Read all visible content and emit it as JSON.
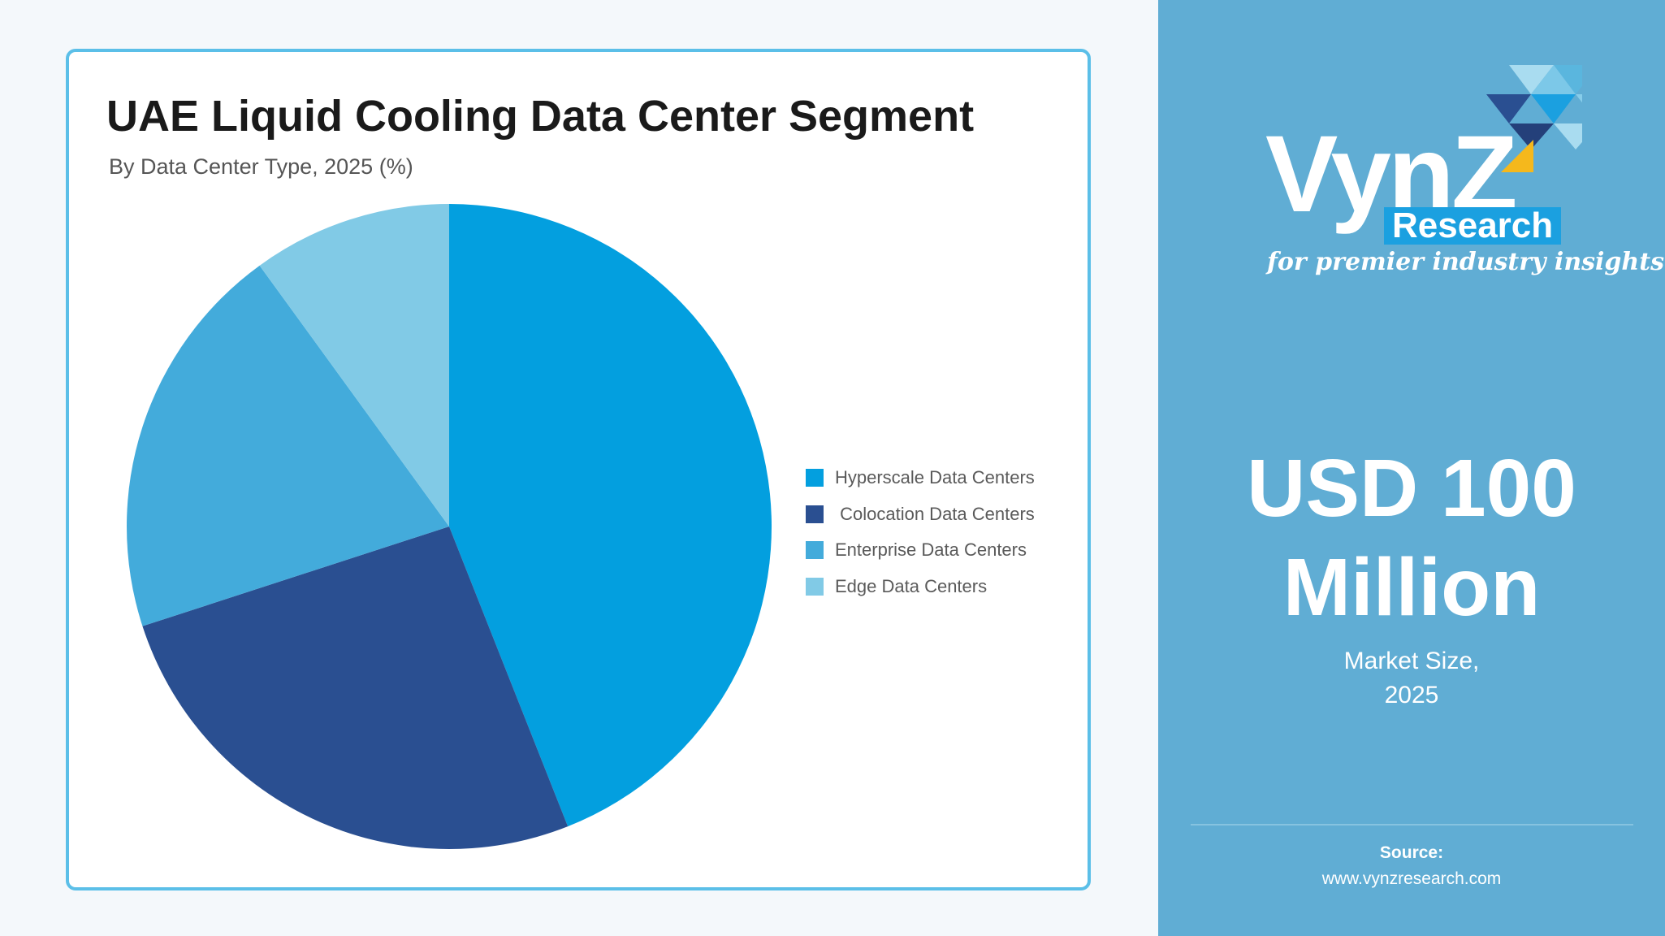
{
  "chart_data": {
    "type": "pie",
    "title": "UAE Liquid Cooling Data Center Segment",
    "subtitle": "By Data Center Type, 2025 (%)",
    "categories": [
      "Hyperscale Data Centers",
      " Colocation Data Centers",
      "Enterprise Data Centers",
      "Edge Data Centers"
    ],
    "values": [
      44,
      26,
      20,
      10
    ],
    "colors": [
      "#039fdf",
      "#2a4f91",
      "#43abdb",
      "#81cae6"
    ],
    "legend_position": "right"
  },
  "panel": {
    "logo": {
      "wordmark": "VynZ",
      "sub": "Research",
      "tagline": "for premier industry insights"
    },
    "market_value": "USD 100 Million",
    "market_caption": "Market Size, 2025",
    "source_label": "Source:",
    "source_url": "www.vynzresearch.com"
  }
}
